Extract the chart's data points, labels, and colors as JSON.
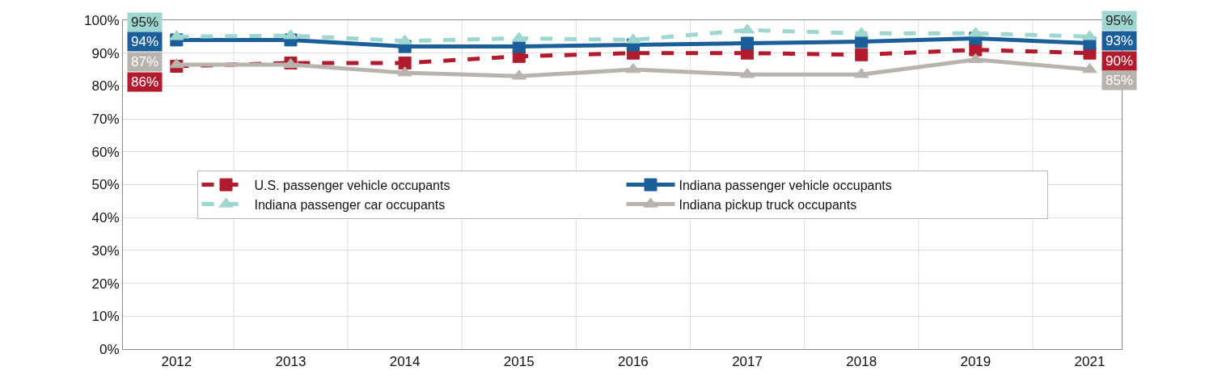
{
  "chart_data": {
    "type": "line",
    "categories": [
      "2012",
      "2013",
      "2014",
      "2015",
      "2016",
      "2017",
      "2018",
      "2019",
      "2021"
    ],
    "ylim": [
      0,
      100
    ],
    "yticks": [
      {
        "value": 0,
        "label": "0%"
      },
      {
        "value": 10,
        "label": "10%"
      },
      {
        "value": 20,
        "label": "20%"
      },
      {
        "value": 30,
        "label": "30%"
      },
      {
        "value": 40,
        "label": "40%"
      },
      {
        "value": 50,
        "label": "50%"
      },
      {
        "value": 60,
        "label": "60%"
      },
      {
        "value": 70,
        "label": "70%"
      },
      {
        "value": 80,
        "label": "80%"
      },
      {
        "value": 90,
        "label": "90%"
      },
      {
        "value": 100,
        "label": "100%"
      }
    ],
    "grid": true,
    "legend": "center",
    "series": [
      {
        "name": "U.S. passenger vehicle occupants",
        "color": "#b01c2e",
        "marker": "square",
        "line_style": "dashed",
        "values": [
          86,
          87,
          87,
          89,
          90,
          90,
          89.5,
          91,
          90
        ],
        "value_labels": [
          "86%",
          null,
          null,
          null,
          null,
          null,
          null,
          null,
          "90%"
        ]
      },
      {
        "name": "Indiana passenger vehicle occupants",
        "color": "#1a5e9a",
        "marker": "square",
        "line_style": "solid",
        "values": [
          94,
          94,
          92,
          92,
          92.5,
          93,
          93.5,
          94.5,
          93
        ],
        "value_labels": [
          "94%",
          null,
          null,
          null,
          null,
          null,
          null,
          null,
          "93%"
        ]
      },
      {
        "name": "Indiana passenger car occupants",
        "color": "#9fd6cf",
        "marker": "triangle",
        "line_style": "dashed",
        "values": [
          95,
          95.3,
          93.7,
          94.5,
          94,
          97,
          96,
          96,
          95
        ],
        "value_labels": [
          "95%",
          null,
          null,
          null,
          null,
          null,
          null,
          null,
          "95%"
        ]
      },
      {
        "name": "Indiana pickup truck occupants",
        "color": "#b8b3ad",
        "marker": "triangle",
        "line_style": "solid",
        "values": [
          86.5,
          86.5,
          84,
          83,
          85,
          83.5,
          83.5,
          88,
          85
        ],
        "value_labels": [
          "87%",
          null,
          null,
          null,
          null,
          null,
          null,
          null,
          "85%"
        ]
      }
    ]
  }
}
